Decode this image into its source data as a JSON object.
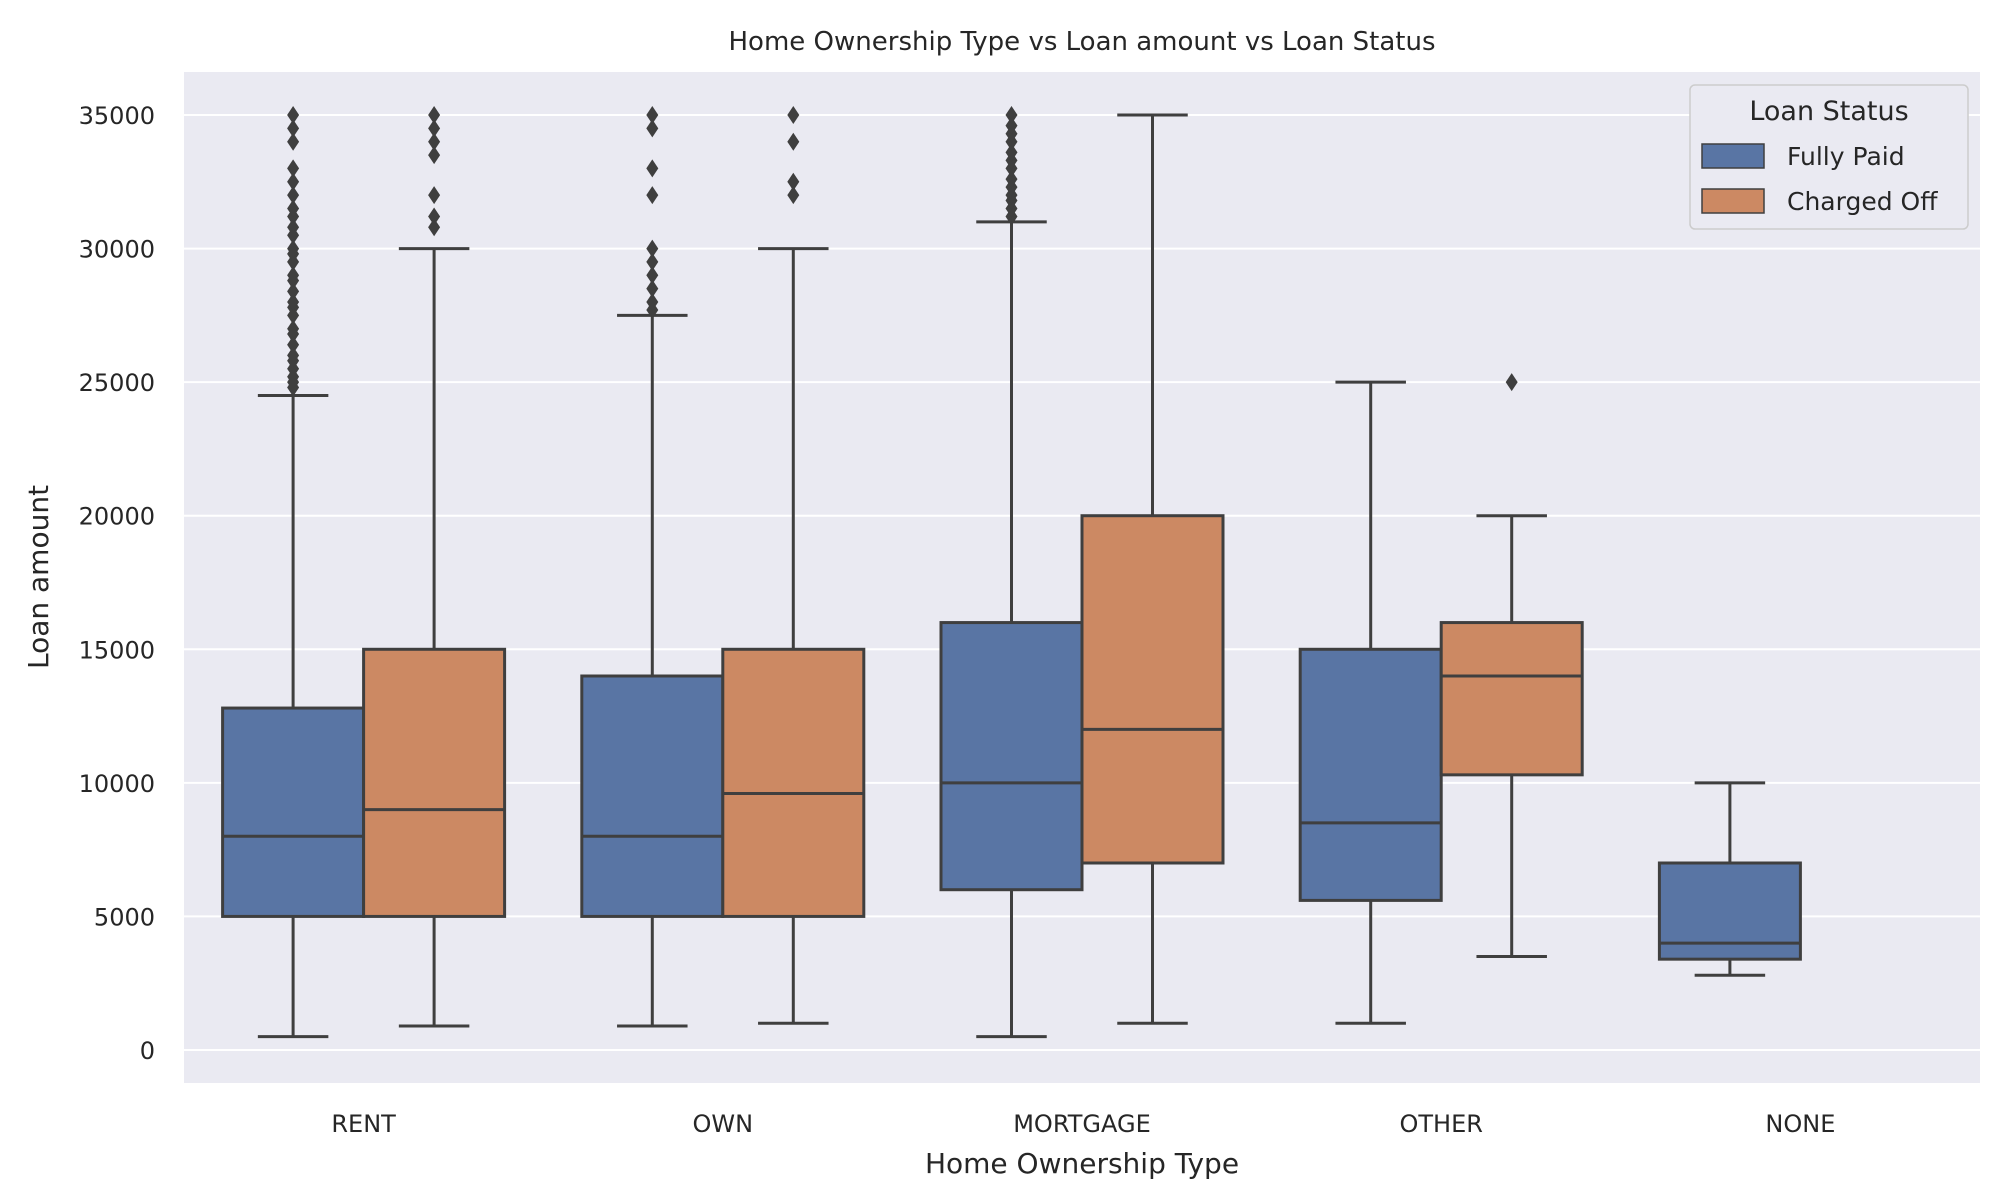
{
  "chart_data": {
    "type": "box",
    "title": "Home Ownership Type vs Loan amount vs Loan Status",
    "xlabel": "Home Ownership Type",
    "ylabel": "Loan amount",
    "ylim": [
      -1200,
      35800
    ],
    "yticks": [
      0,
      5000,
      10000,
      15000,
      20000,
      25000,
      30000,
      35000
    ],
    "grid": true,
    "legend": {
      "title": "Loan Status",
      "position": "top-right"
    },
    "categories": [
      "RENT",
      "OWN",
      "MORTGAGE",
      "OTHER",
      "NONE"
    ],
    "series": [
      {
        "name": "Fully Paid",
        "color": "#5975a4",
        "boxes": [
          {
            "category": "RENT",
            "whisker_low": 500,
            "q1": 5000,
            "median": 8000,
            "q3": 12800,
            "whisker_high": 24500,
            "outliers": [
              24800,
              25000,
              25200,
              25500,
              25800,
              26000,
              26400,
              26800,
              27000,
              27500,
              27800,
              28000,
              28400,
              28800,
              29000,
              29500,
              29800,
              30000,
              30500,
              30800,
              31200,
              31500,
              32000,
              32500,
              33000,
              34000,
              34500,
              35000
            ]
          },
          {
            "category": "OWN",
            "whisker_low": 900,
            "q1": 5000,
            "median": 8000,
            "q3": 14000,
            "whisker_high": 27500,
            "outliers": [
              27700,
              28000,
              28500,
              29000,
              29500,
              30000,
              32000,
              33000,
              34500,
              35000
            ]
          },
          {
            "category": "MORTGAGE",
            "whisker_low": 500,
            "q1": 6000,
            "median": 10000,
            "q3": 16000,
            "whisker_high": 31000,
            "outliers": [
              31200,
              31500,
              31800,
              32000,
              32300,
              32600,
              33000,
              33300,
              33600,
              34000,
              34300,
              34600,
              35000
            ]
          },
          {
            "category": "OTHER",
            "whisker_low": 1000,
            "q1": 5600,
            "median": 8500,
            "q3": 15000,
            "whisker_high": 25000,
            "outliers": []
          },
          {
            "category": "NONE",
            "whisker_low": 2800,
            "q1": 3400,
            "median": 4000,
            "q3": 7000,
            "whisker_high": 10000,
            "outliers": []
          }
        ]
      },
      {
        "name": "Charged Off",
        "color": "#cc8963",
        "boxes": [
          {
            "category": "RENT",
            "whisker_low": 900,
            "q1": 5000,
            "median": 9000,
            "q3": 15000,
            "whisker_high": 30000,
            "outliers": [
              30800,
              31200,
              32000,
              33500,
              34000,
              34500,
              35000
            ]
          },
          {
            "category": "OWN",
            "whisker_low": 1000,
            "q1": 5000,
            "median": 9600,
            "q3": 15000,
            "whisker_high": 30000,
            "outliers": [
              32000,
              32500,
              34000,
              35000
            ]
          },
          {
            "category": "MORTGAGE",
            "whisker_low": 1000,
            "q1": 7000,
            "median": 12000,
            "q3": 20000,
            "whisker_high": 35000,
            "outliers": []
          },
          {
            "category": "OTHER",
            "whisker_low": 3500,
            "q1": 10300,
            "median": 14000,
            "q3": 16000,
            "whisker_high": 20000,
            "outliers": [
              25000
            ]
          },
          {
            "category": "NONE",
            "empty": true
          }
        ]
      }
    ]
  }
}
